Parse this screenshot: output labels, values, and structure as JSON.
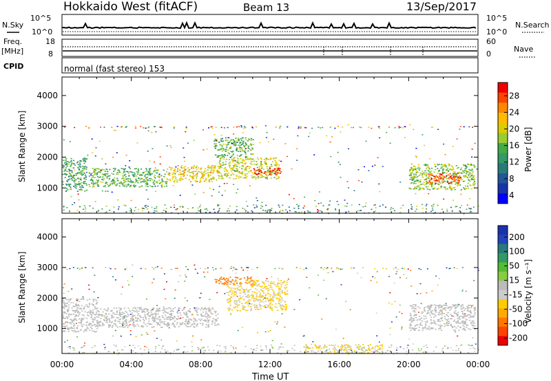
{
  "header": {
    "station": "Hokkaido West (fitACF)",
    "beam": "Beam 13",
    "date": "13/Sep/2017"
  },
  "strip": {
    "nsky_label": "N.Sky",
    "nsky_ticks": [
      "10^5",
      "10^0"
    ],
    "nsearch_label": "N.Search",
    "nsearch_ticks": [
      "10^5",
      "10^0"
    ],
    "freq_label": "Freq.",
    "freq_unit": "[MHz]",
    "freq_ticks": [
      "18",
      "8"
    ],
    "nave_label": "Nave",
    "nave_ticks": [
      "60",
      "0"
    ],
    "cpid_label": "CPID",
    "cpid_text": "normal (fast stereo) 153"
  },
  "chart_data": [
    {
      "type": "heatmap",
      "name": "power",
      "ylabel": "Slant Range [km]",
      "yticks": [
        1000,
        2000,
        3000,
        4000
      ],
      "ylim": [
        180,
        4600
      ],
      "xlim": [
        0,
        24
      ],
      "xticks": [
        "00:00",
        "04:00",
        "08:00",
        "12:00",
        "16:00",
        "20:00",
        "00:00"
      ],
      "colorbar": {
        "label": "Power [dB]",
        "ticks": [
          "28",
          "24",
          "20",
          "16",
          "12",
          "8",
          "4"
        ],
        "colors": [
          "#ee0000",
          "#ff4400",
          "#ff8800",
          "#ffbb00",
          "#ddcc00",
          "#99cc33",
          "#44aa44",
          "#339966",
          "#2a7a7a",
          "#225599",
          "#1a33aa",
          "#0000ff"
        ],
        "range": [
          0,
          30
        ]
      },
      "regions": [
        {
          "t0": 0.0,
          "t1": 1.4,
          "r0": 900,
          "r1": 2000,
          "level": 12
        },
        {
          "t0": 1.5,
          "t1": 6.0,
          "r0": 1050,
          "r1": 1650,
          "level": 14
        },
        {
          "t0": 6.0,
          "t1": 9.0,
          "r0": 1200,
          "r1": 1750,
          "level": 20
        },
        {
          "t0": 8.7,
          "t1": 11.0,
          "r0": 2000,
          "r1": 2650,
          "level": 14
        },
        {
          "t0": 9.0,
          "t1": 12.5,
          "r0": 1300,
          "r1": 2000,
          "level": 18
        },
        {
          "t0": 11.0,
          "t1": 12.7,
          "r0": 1450,
          "r1": 1650,
          "level": 28
        },
        {
          "t0": 20.0,
          "t1": 23.8,
          "r0": 950,
          "r1": 1800,
          "level": 16
        },
        {
          "t0": 21.0,
          "t1": 23.0,
          "r0": 1150,
          "r1": 1500,
          "level": 26
        }
      ]
    },
    {
      "type": "heatmap",
      "name": "velocity",
      "ylabel": "Slant Range [km]",
      "yticks": [
        1000,
        2000,
        3000,
        4000
      ],
      "ylim": [
        180,
        4600
      ],
      "xlim": [
        0,
        24
      ],
      "xticks": [
        "00:00",
        "04:00",
        "08:00",
        "12:00",
        "16:00",
        "20:00",
        "00:00"
      ],
      "xlabel": "Time UT",
      "colorbar": {
        "label": "Velocity [m s⁻¹]",
        "ticks": [
          "200",
          "100",
          "50",
          "15",
          "-15",
          "-50",
          "-100",
          "-200"
        ],
        "colors": [
          "#1a33aa",
          "#2244bb",
          "#2a7a7a",
          "#339966",
          "#55bb33",
          "#88cc44",
          "#bbbbbb",
          "#cccccc",
          "#ffcc00",
          "#ffaa00",
          "#ff7700",
          "#ff4400",
          "#ee0000"
        ],
        "range": [
          -250,
          250
        ]
      },
      "regions": [
        {
          "t0": 0.0,
          "t1": 2.0,
          "r0": 900,
          "r1": 2000,
          "level": 0
        },
        {
          "t0": 2.0,
          "t1": 9.0,
          "r0": 1050,
          "r1": 1700,
          "level": 0
        },
        {
          "t0": 8.8,
          "t1": 11.0,
          "r0": 2450,
          "r1": 2700,
          "level": -150
        },
        {
          "t0": 9.5,
          "t1": 13.0,
          "r0": 1600,
          "r1": 2600,
          "level": -60
        },
        {
          "t0": 14.0,
          "t1": 18.5,
          "r0": 200,
          "r1": 500,
          "level": -60
        },
        {
          "t0": 20.0,
          "t1": 23.8,
          "r0": 950,
          "r1": 1800,
          "level": 0
        }
      ]
    }
  ]
}
